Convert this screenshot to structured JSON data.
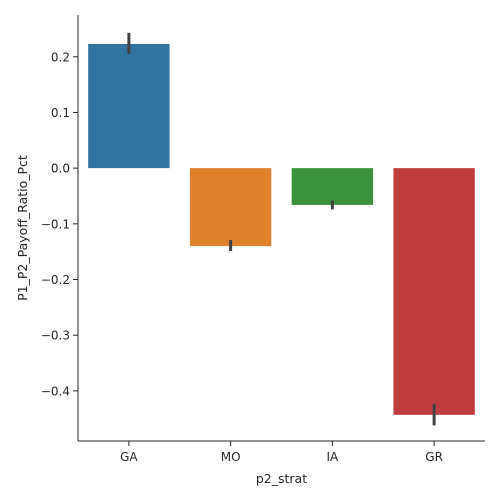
{
  "chart_data": {
    "type": "bar",
    "title": "",
    "xlabel": "p2_strat",
    "ylabel": "P1_P2_Payoff_Ratio_Pct",
    "categories": [
      "GA",
      "MO",
      "IA",
      "GR"
    ],
    "values": [
      0.223,
      -0.14,
      -0.066,
      -0.443
    ],
    "error_low": [
      0.205,
      -0.149,
      -0.074,
      -0.462
    ],
    "error_high": [
      0.243,
      -0.129,
      -0.058,
      -0.423
    ],
    "colors": [
      "#3274a1",
      "#e1812c",
      "#3a923a",
      "#c03d3e"
    ],
    "ylim": [
      -0.49,
      0.275
    ],
    "yticks": [
      -0.4,
      -0.3,
      -0.2,
      -0.1,
      0.0,
      0.1,
      0.2
    ],
    "ytick_labels": [
      "−0.4",
      "−0.3",
      "−0.2",
      "−0.1",
      "0.0",
      "0.1",
      "0.2"
    ],
    "grid": false,
    "legend": "none"
  }
}
